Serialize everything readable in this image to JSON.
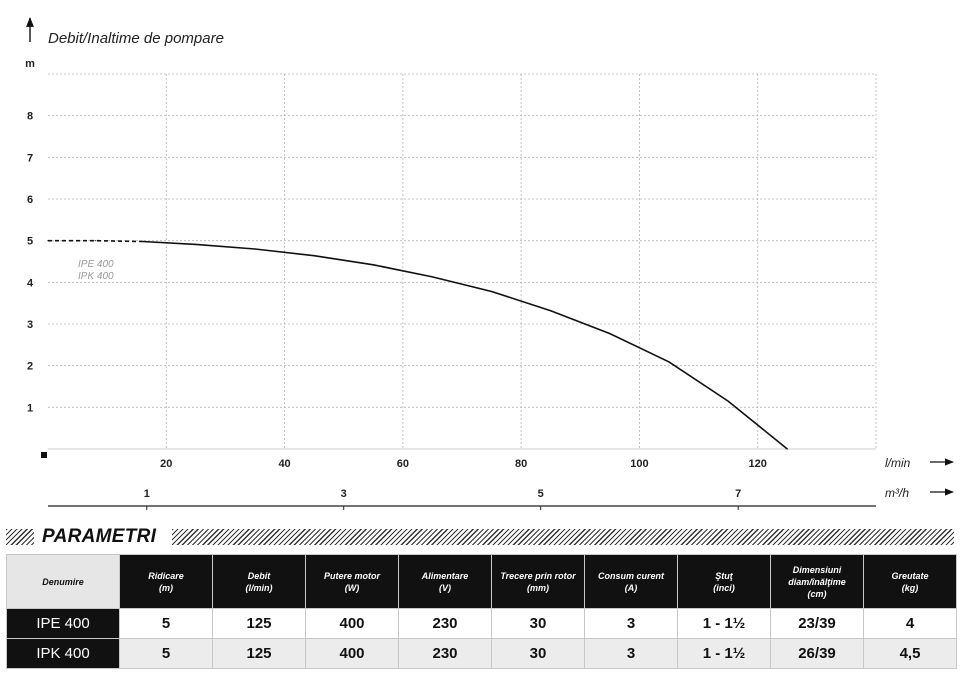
{
  "chart_data": {
    "type": "line",
    "title": "Debit/Inaltime de pompare",
    "ylabel": "m",
    "xlabel": "l/min",
    "x2label": "m³/h",
    "xlim": [
      0,
      140
    ],
    "ylim": [
      0,
      9
    ],
    "xticks": [
      20,
      40,
      60,
      80,
      100,
      120
    ],
    "yticks": [
      1,
      2,
      3,
      4,
      5,
      6,
      7,
      8
    ],
    "x2ticks": [
      {
        "label": "1",
        "lpm": 16.7
      },
      {
        "label": "3",
        "lpm": 50
      },
      {
        "label": "5",
        "lpm": 83.3
      },
      {
        "label": "7",
        "lpm": 116.7
      }
    ],
    "grid": true,
    "series": [
      {
        "name": "IPE 400",
        "name2": "IPK 400",
        "dashed_until": 16,
        "x": [
          0,
          8,
          16,
          25,
          35,
          45,
          55,
          65,
          75,
          85,
          95,
          105,
          115,
          125
        ],
        "y": [
          5.0,
          5.0,
          4.98,
          4.91,
          4.8,
          4.64,
          4.42,
          4.13,
          3.78,
          3.32,
          2.77,
          2.09,
          1.15,
          0.0
        ]
      }
    ]
  },
  "parametri": {
    "title": "PARAMETRI",
    "headers": [
      [
        "Denumire"
      ],
      [
        "Ridicare",
        "(m)"
      ],
      [
        "Debit",
        "(l/min)"
      ],
      [
        "Putere motor",
        "(W)"
      ],
      [
        "Alimentare",
        "(V)"
      ],
      [
        "Trecere prin rotor",
        "(mm)"
      ],
      [
        "Consum curent",
        "(A)"
      ],
      [
        "Ştuţ",
        "(inci)"
      ],
      [
        "Dimensiuni",
        "diam/înălţime",
        "(cm)"
      ],
      [
        "Greutate",
        "(kg)"
      ]
    ],
    "rows": [
      [
        "IPE 400",
        "5",
        "125",
        "400",
        "230",
        "30",
        "3",
        "1 - 1½",
        "23/39",
        "4"
      ],
      [
        "IPK 400",
        "5",
        "125",
        "400",
        "230",
        "30",
        "3",
        "1 - 1½",
        "26/39",
        "4,5"
      ]
    ]
  }
}
